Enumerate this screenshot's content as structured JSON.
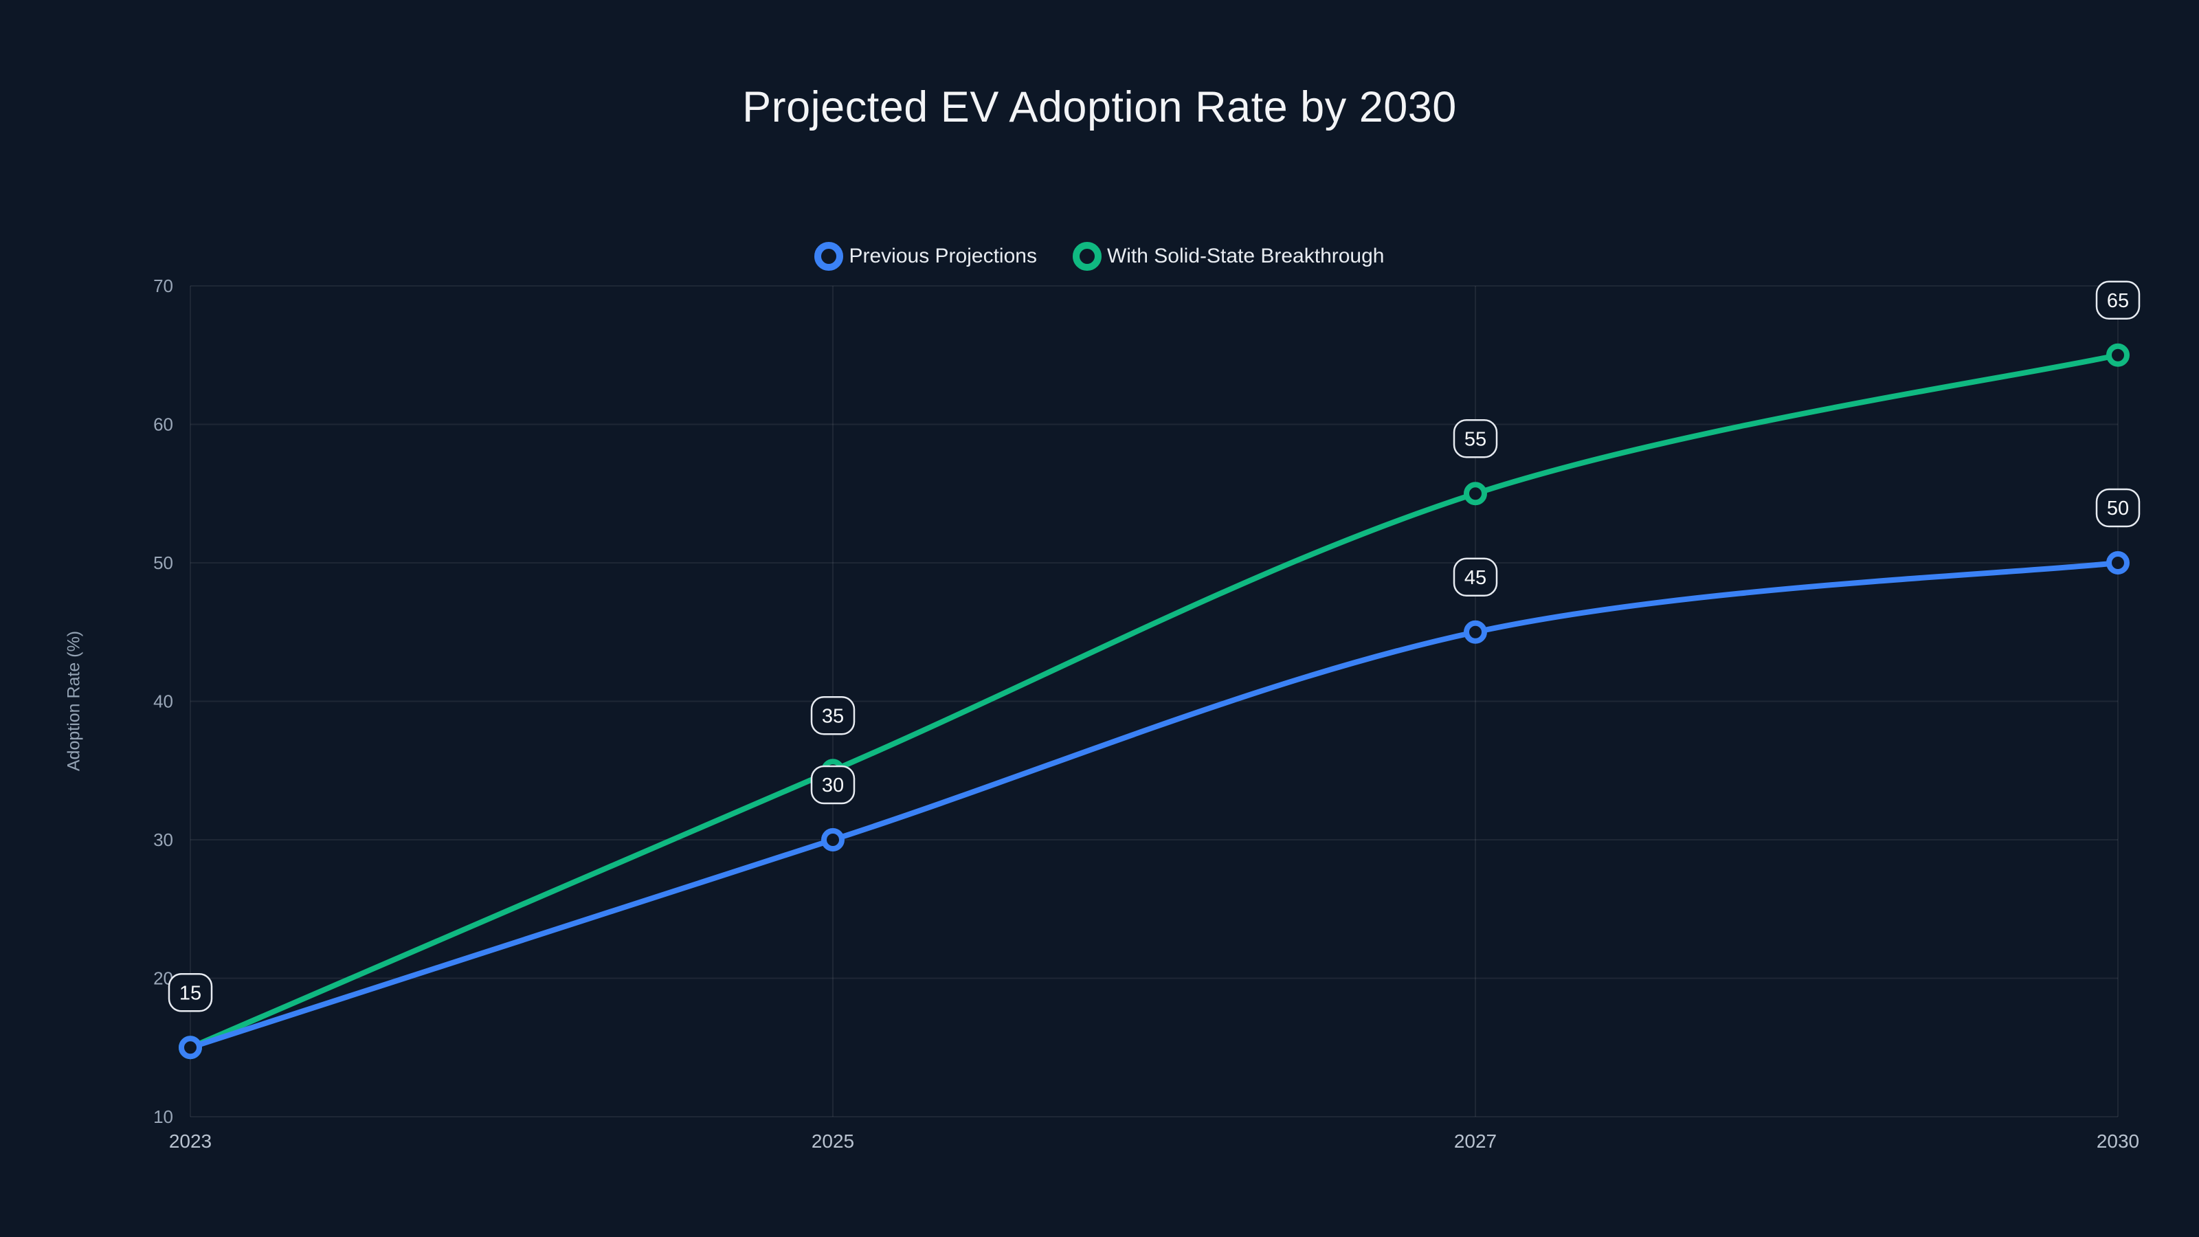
{
  "chart_data": {
    "type": "line",
    "title": "Projected EV Adoption Rate by 2030",
    "categories": [
      "2023",
      "2025",
      "2027",
      "2030"
    ],
    "series": [
      {
        "name": "With Solid-State Breakthrough",
        "color": "#10b981",
        "values": [
          15,
          35,
          55,
          65
        ],
        "legend_order": 2
      },
      {
        "name": "Previous Projections",
        "color": "#3b82f6",
        "values": [
          15,
          30,
          45,
          50
        ],
        "legend_order": 1
      }
    ],
    "xlabel": "",
    "ylabel": "Adoption Rate (%)",
    "ylim": [
      10,
      70
    ],
    "yticks": [
      10,
      20,
      30,
      40,
      50,
      60,
      70
    ],
    "grid": true,
    "legend_position": "top",
    "point_labels": true,
    "background_color": "#0d1726",
    "grid_color": "rgba(255,255,255,0.07)",
    "point_label_border_color": "#e7ebf1"
  }
}
